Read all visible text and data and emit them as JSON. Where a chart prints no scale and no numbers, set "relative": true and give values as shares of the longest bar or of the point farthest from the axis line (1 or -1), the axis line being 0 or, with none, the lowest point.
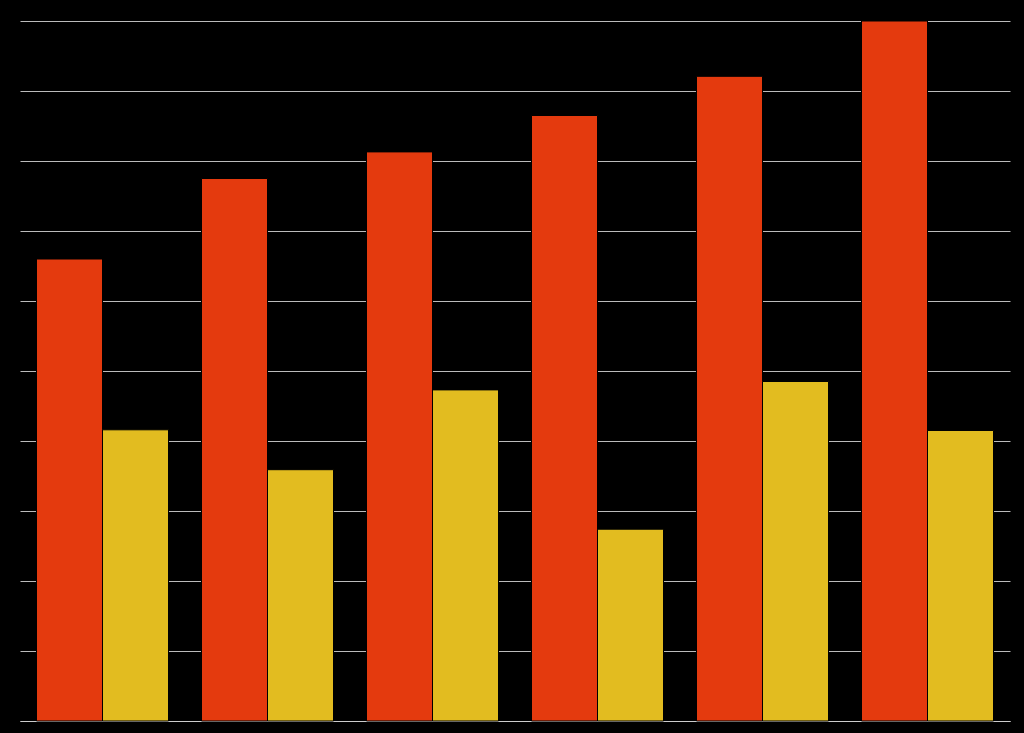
{
  "chart_data": {
    "type": "bar",
    "relative": true,
    "grid": "y",
    "categories": [
      null,
      null,
      null,
      null,
      null,
      null
    ],
    "series": [
      {
        "color": "#e43a0e",
        "values": [
          0.66,
          0.775,
          0.813,
          0.865,
          0.921,
          1
        ]
      },
      {
        "color": "#e2bc20",
        "values": [
          0.416,
          0.359,
          0.473,
          0.274,
          0.485,
          0.415
        ]
      }
    ]
  }
}
